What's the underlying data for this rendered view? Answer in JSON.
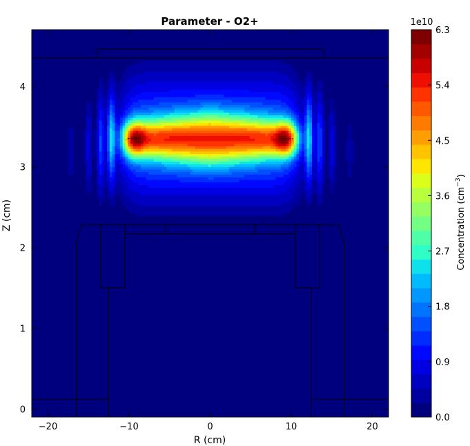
{
  "chart_data": {
    "type": "contour",
    "title": "Parameter - O2+",
    "xlabel": "R (cm)",
    "ylabel": "Z (cm)",
    "xlim": [
      -22,
      22
    ],
    "ylim": [
      -0.1,
      4.7
    ],
    "xticks": [
      -20,
      -10,
      0,
      10,
      20
    ],
    "xtick_labels": [
      "−20",
      "−10",
      "0",
      "10",
      "20"
    ],
    "yticks": [
      0,
      1,
      2,
      3,
      4
    ],
    "ytick_labels": [
      "0",
      "1",
      "2",
      "3",
      "4"
    ],
    "colorbar": {
      "label_main": "Concentration (cm",
      "label_sup": "−3",
      "label_close": ")",
      "multiplier": "1e10",
      "min": 0.0,
      "max": 6.3,
      "levels": 21,
      "ticks": [
        0.0,
        0.9,
        1.8,
        2.7,
        3.6,
        4.5,
        5.4,
        6.3
      ],
      "tick_labels": [
        "0.0",
        "0.9",
        "1.8",
        "2.7",
        "3.6",
        "4.5",
        "5.4",
        "6.3"
      ]
    },
    "colors": {
      "level_colors": [
        "#00007f",
        "#0000a0",
        "#0000c1",
        "#0000e2",
        "#0008ff",
        "#002cff",
        "#0050ff",
        "#0074ff",
        "#0098ff",
        "#00bcff",
        "#0ee1eb",
        "#2fffc7",
        "#4fffa7",
        "#72ff84",
        "#95ff61",
        "#b8ff3e",
        "#dbff1b",
        "#ffe600",
        "#ffc300",
        "#ff9e00",
        "#ff7b00",
        "#ff5800",
        "#ff3300",
        "#ef0f00",
        "#c90000",
        "#a30000",
        "#7f0000"
      ]
    },
    "field": {
      "description_units": "concentration in units of 1e10 cm^-3",
      "peak": 6.3,
      "peak_locations_R": [
        -9.5,
        9.5
      ],
      "peak_Z": 3.35,
      "background": 0.05
    }
  }
}
